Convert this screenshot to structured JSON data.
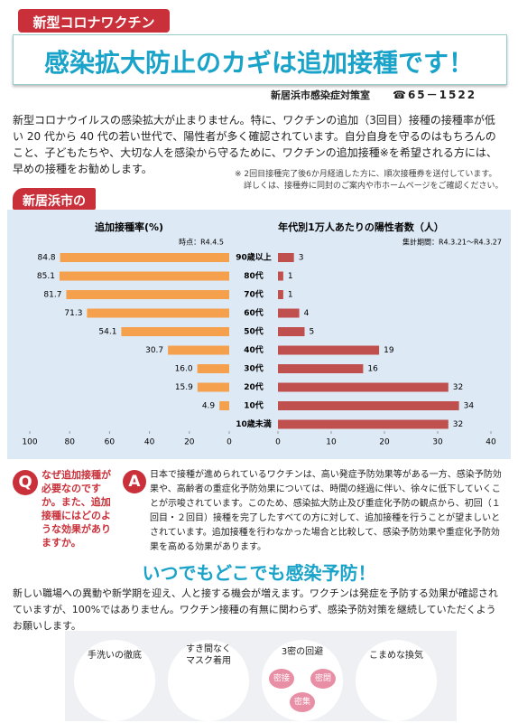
{
  "header": {
    "tag": "新型コロナワクチン",
    "title": "感染拡大防止のカギは追加接種です！",
    "department": "新居浜市感染症対策室",
    "phone": "☎65－1522"
  },
  "intro": "新型コロナウイルスの感染拡大が止まりません。特に、ワクチンの追加（3回目）接種の接種率が低い 20 代から 40 代の若い世代で、陽性者が多く確認されています。自分自身を守るのはもちろんのこと、子どもたちや、大切な人を感染から守るために、ワクチンの追加接種※を希望される方には、早めの接種をお勧めします。",
  "note": [
    "※ 2回目接種完了後6か月経過した方に、順次接種券を送付しています。",
    "詳しくは、接種券に同封のご案内や市ホームページをご確認ください。"
  ],
  "chart_label": "新居浜市の",
  "chart_data": [
    {
      "type": "bar",
      "orientation": "horizontal",
      "title": "追加接種率(%)",
      "subtitle": "時点：R4.4.5",
      "color": "#f4a04c",
      "categories": [
        "90歳以上",
        "80代",
        "70代",
        "60代",
        "50代",
        "40代",
        "30代",
        "20代",
        "10代",
        "10歳未満"
      ],
      "values": [
        84.8,
        85.1,
        81.7,
        71.3,
        54.1,
        30.7,
        16.0,
        15.9,
        4.9,
        null
      ],
      "value_labels": [
        "84.8",
        "85.1",
        "81.7",
        "71.3",
        "54.1",
        "30.7",
        "16.0",
        "15.9",
        "4.9",
        null
      ],
      "xlim": [
        100,
        0
      ],
      "xticks": [
        100,
        80,
        60,
        40,
        20,
        0
      ]
    },
    {
      "type": "bar",
      "orientation": "horizontal",
      "title": "年代別1万人あたりの陽性者数（人）",
      "subtitle": "集計期間：R4.3.21～R4.3.27",
      "color": "#c0504d",
      "values": [
        3,
        1,
        1,
        4,
        5,
        19,
        16,
        32,
        34,
        32
      ],
      "xlim": [
        0,
        40
      ],
      "xticks": [
        0,
        10,
        20,
        30,
        40
      ]
    }
  ],
  "qa": {
    "q_mark": "Q",
    "question": "なぜ追加接種が必要なのですか。また、追加接種にはどのような効果がありますか。",
    "a_mark": "A",
    "answer": "日本で接種が進められているワクチンは、高い発症予防効果等がある一方、感染予防効果や、高齢者の重症化予防効果については、時間の経過に伴い、徐々に低下していくことが示唆されています。このため、感染拡大防止及び重症化予防の観点から、初回（１回目・２回目）接種を完了したすべての方に対して、追加接種を行うことが望ましいとされています。追加接種を行わなかった場合と比較して、感染予防効果や重症化予防効果を高める効果があります。"
  },
  "prevention": {
    "title": "いつでもどこでも感染予防！",
    "text": "新しい職場への異動や新学期を迎え、人と接する機会が増えます。ワクチンは発症を予防する効果が確認されていますが、100%ではありません。ワクチン接種の有無に関わらず、感染予防対策を継続していただくようお願いします。",
    "icons": [
      {
        "label": "手洗いの徹底"
      },
      {
        "label": [
          "すき間なく",
          "マスク着用"
        ]
      },
      {
        "label": "3密の回避",
        "items": [
          "密接",
          "密閉",
          "密集"
        ]
      },
      {
        "label": "こまめな換気"
      }
    ]
  }
}
